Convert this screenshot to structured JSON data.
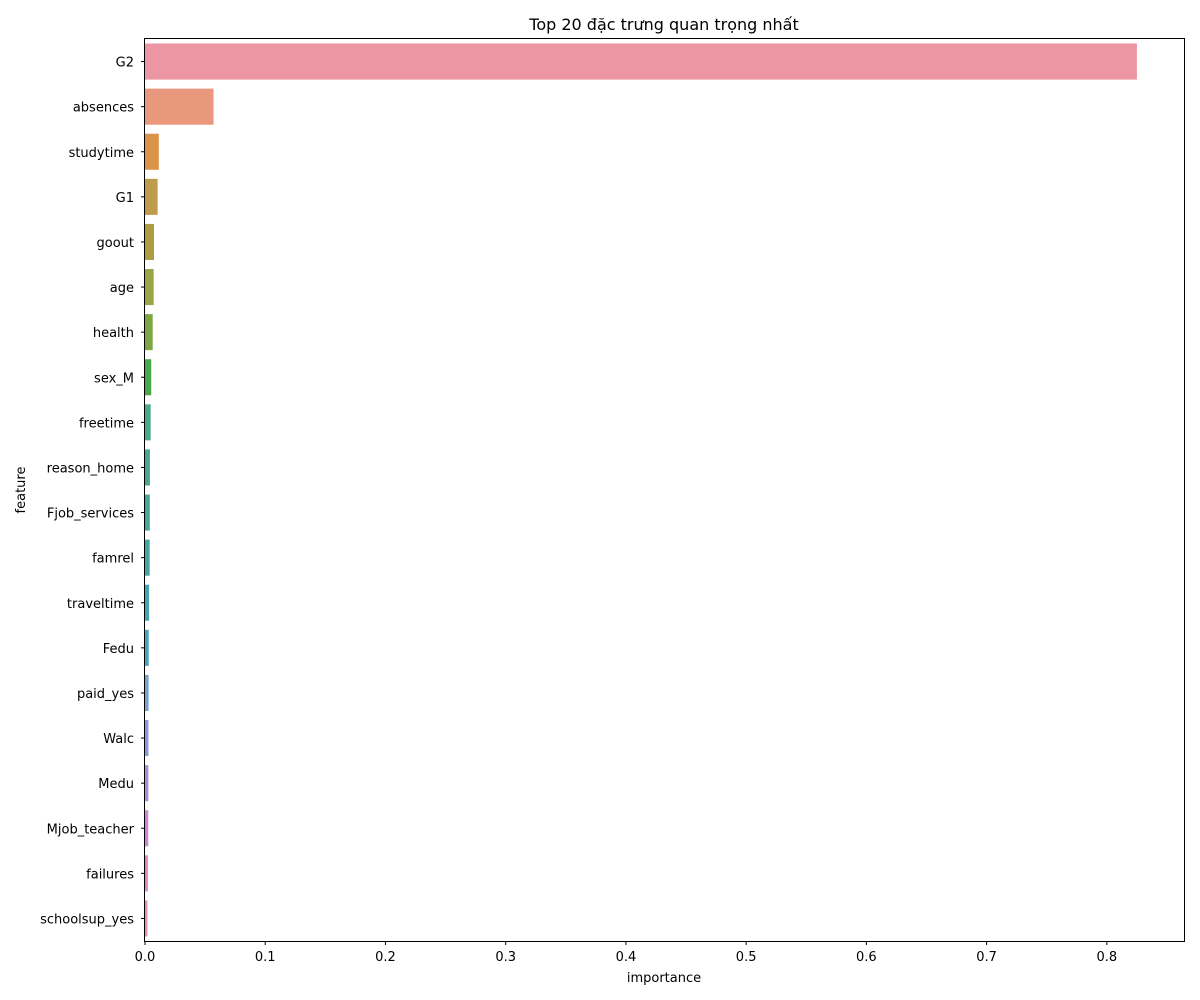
{
  "chart_data": {
    "type": "bar",
    "orientation": "horizontal",
    "title": "Top 20 đặc trưng quan trọng nhất",
    "xlabel": "importance",
    "ylabel": "feature",
    "xlim": [
      0,
      0.865
    ],
    "xticks": [
      0,
      0.1,
      0.2,
      0.3,
      0.4,
      0.5,
      0.6,
      0.7,
      0.8
    ],
    "xtick_labels": [
      "0.0",
      "0.1",
      "0.2",
      "0.3",
      "0.4",
      "0.5",
      "0.6",
      "0.7",
      "0.8"
    ],
    "grid": false,
    "categories": [
      "G2",
      "absences",
      "studytime",
      "G1",
      "goout",
      "age",
      "health",
      "sex_M",
      "freetime",
      "reason_home",
      "Fjob_services",
      "famrel",
      "traveltime",
      "Fedu",
      "paid_yes",
      "Walc",
      "Medu",
      "Mjob_teacher",
      "failures",
      "schoolsup_yes"
    ],
    "values": [
      0.825,
      0.057,
      0.0115,
      0.0105,
      0.0075,
      0.0072,
      0.0064,
      0.0052,
      0.0047,
      0.0041,
      0.004,
      0.0039,
      0.0034,
      0.0031,
      0.003,
      0.0029,
      0.0028,
      0.0027,
      0.0024,
      0.002
    ],
    "colors": [
      "#ec96a4",
      "#e9977d",
      "#d99449",
      "#bf9c4b",
      "#ad9e45",
      "#9aa548",
      "#7ea645",
      "#4ea64a",
      "#49ab86",
      "#4aa891",
      "#47a89b",
      "#45a6a5",
      "#48a5b0",
      "#4ba3bd",
      "#7aa2cf",
      "#8d9ad6",
      "#a88fd8",
      "#d085d6",
      "#dc88c5",
      "#e68fae"
    ]
  }
}
